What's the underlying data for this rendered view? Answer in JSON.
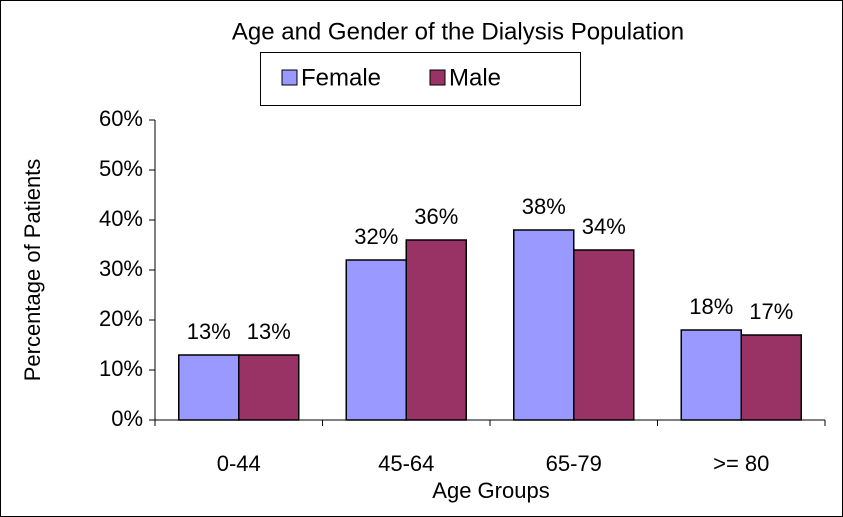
{
  "chart_data": {
    "type": "bar",
    "title": "Age and Gender of the Dialysis Population",
    "x_label": "Age Groups",
    "y_label": "Percentage of Patients",
    "categories": [
      "0-44",
      "45-64",
      "65-79",
      ">= 80"
    ],
    "series": [
      {
        "name": "Female",
        "color": "#9999ff",
        "values": [
          13,
          32,
          38,
          18
        ],
        "value_labels": [
          "13%",
          "32%",
          "38%",
          "18%"
        ]
      },
      {
        "name": "Male",
        "color": "#993366",
        "values": [
          13,
          36,
          34,
          17
        ],
        "value_labels": [
          "13%",
          "36%",
          "34%",
          "17%"
        ]
      }
    ],
    "ylim": [
      0,
      60
    ],
    "yticks": [
      {
        "value": 0,
        "label": "0%"
      },
      {
        "value": 10,
        "label": "10%"
      },
      {
        "value": 20,
        "label": "20%"
      },
      {
        "value": 30,
        "label": "30%"
      },
      {
        "value": 40,
        "label": "40%"
      },
      {
        "value": 50,
        "label": "50%"
      },
      {
        "value": 60,
        "label": "60%"
      }
    ],
    "grid": false,
    "legend": "top"
  }
}
